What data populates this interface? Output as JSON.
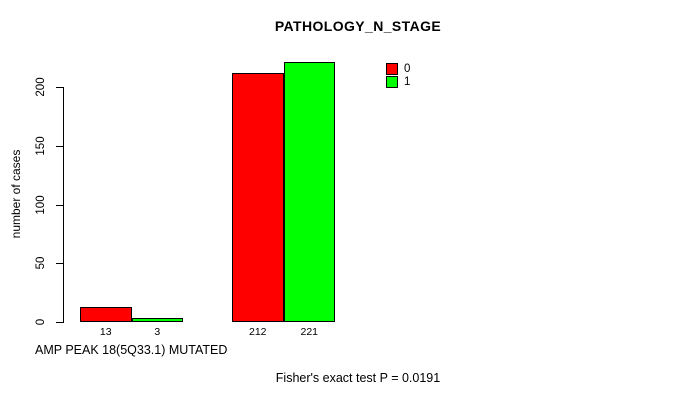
{
  "chart_data": {
    "type": "bar",
    "title": "PATHOLOGY_N_STAGE",
    "ylabel": "number of cases",
    "xlabel": "AMP PEAK 18(5Q33.1) MUTATED",
    "footnote": "Fisher's exact test P = 0.0191",
    "yticks": [
      0,
      50,
      100,
      150,
      200
    ],
    "axis_max": 200,
    "ylim": [
      0,
      232
    ],
    "grid": false,
    "legend_position": "top-right",
    "value_labels_shown": true,
    "categories": [
      "",
      ""
    ],
    "series": [
      {
        "name": "0",
        "color": "#ff0000",
        "values": [
          13,
          212
        ]
      },
      {
        "name": "1",
        "color": "#00ff00",
        "values": [
          3,
          221
        ]
      }
    ]
  },
  "colors": {
    "background": "#ffffff",
    "foreground": "#000000"
  }
}
